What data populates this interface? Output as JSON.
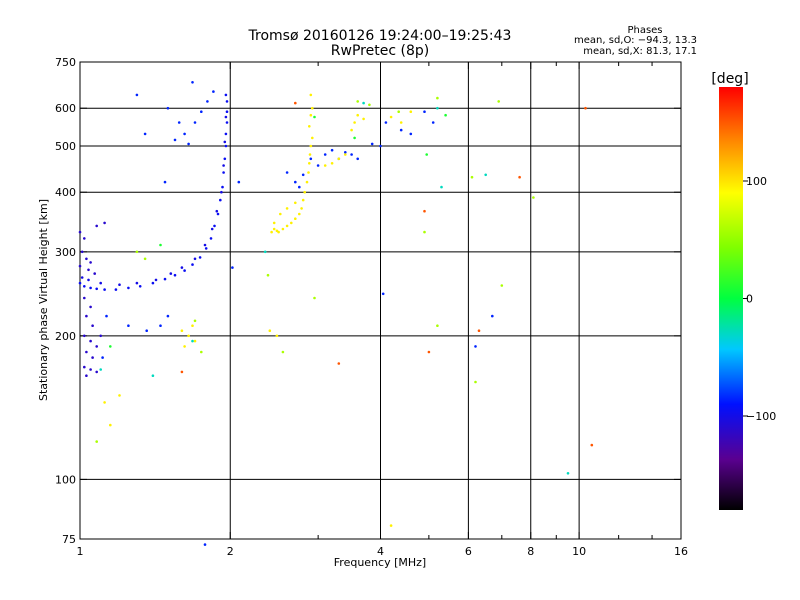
{
  "chart_data": {
    "type": "scatter",
    "title_line1": "Tromsø 20160126 19:24:00–19:25:43",
    "title_line2": "RwPretec (8p)",
    "annotation": {
      "heading": "Phases",
      "line1": "mean, sd,O: −94.3, 13.3",
      "line2": "mean, sd,X:  81.3, 17.1"
    },
    "xlabel": "Frequency [MHz]",
    "ylabel": "Stationary phase Virtual Height [km]",
    "x_scale": "log",
    "y_scale": "log",
    "xlim": [
      1,
      16
    ],
    "ylim": [
      75,
      750
    ],
    "x_ticks": [
      {
        "v": 1,
        "label": "1"
      },
      {
        "v": 2,
        "label": "2"
      },
      {
        "v": 4,
        "label": "4"
      },
      {
        "v": 6,
        "label": "6"
      },
      {
        "v": 8,
        "label": "8"
      },
      {
        "v": 10,
        "label": "10"
      },
      {
        "v": 16,
        "label": "16"
      }
    ],
    "x_minor": [
      3,
      5,
      7,
      9,
      12,
      14
    ],
    "y_ticks": [
      {
        "v": 75,
        "label": "75"
      },
      {
        "v": 100,
        "label": "100"
      },
      {
        "v": 200,
        "label": "200"
      },
      {
        "v": 300,
        "label": "300"
      },
      {
        "v": 400,
        "label": "400"
      },
      {
        "v": 500,
        "label": "500"
      },
      {
        "v": 600,
        "label": "600"
      },
      {
        "v": 750,
        "label": "750"
      }
    ],
    "grid": true,
    "colorbar": {
      "label": "[deg]",
      "min": -180,
      "max": 180,
      "ticks": [
        {
          "v": 100,
          "label": "100"
        },
        {
          "v": 0,
          "label": "0"
        },
        {
          "v": -100,
          "label": "−100"
        }
      ]
    },
    "series": [
      {
        "phase": -95,
        "points": [
          [
            1.0,
            258
          ],
          [
            1.02,
            254
          ],
          [
            1.05,
            252
          ],
          [
            1.08,
            251
          ],
          [
            1.12,
            250
          ],
          [
            1.18,
            250
          ],
          [
            1.25,
            252
          ],
          [
            1.32,
            254
          ],
          [
            1.4,
            258
          ],
          [
            1.48,
            263
          ],
          [
            1.55,
            268
          ],
          [
            1.62,
            274
          ],
          [
            1.68,
            282
          ],
          [
            1.74,
            292
          ],
          [
            1.79,
            305
          ],
          [
            1.83,
            320
          ],
          [
            1.86,
            340
          ],
          [
            1.89,
            360
          ],
          [
            1.91,
            385
          ],
          [
            1.93,
            410
          ],
          [
            1.94,
            440
          ],
          [
            1.95,
            470
          ],
          [
            1.96,
            500
          ],
          [
            1.96,
            530
          ],
          [
            1.97,
            560
          ],
          [
            1.97,
            590
          ],
          [
            1.97,
            620
          ],
          [
            1.96,
            640
          ]
        ]
      },
      {
        "phase": -100,
        "points": [
          [
            1.01,
            265
          ],
          [
            1.04,
            262
          ],
          [
            1.1,
            258
          ],
          [
            1.2,
            256
          ],
          [
            1.3,
            258
          ],
          [
            1.42,
            262
          ],
          [
            1.52,
            270
          ],
          [
            1.6,
            278
          ],
          [
            1.7,
            290
          ],
          [
            1.78,
            310
          ],
          [
            1.84,
            335
          ],
          [
            1.88,
            365
          ],
          [
            1.92,
            400
          ],
          [
            1.94,
            455
          ],
          [
            1.95,
            510
          ],
          [
            1.96,
            575
          ]
        ]
      },
      {
        "phase": -110,
        "points": [
          [
            1.0,
            330
          ],
          [
            1.02,
            320
          ],
          [
            1.01,
            300
          ],
          [
            1.03,
            290
          ],
          [
            1.05,
            285
          ],
          [
            1.0,
            280
          ],
          [
            1.04,
            275
          ],
          [
            1.07,
            270
          ],
          [
            1.02,
            240
          ],
          [
            1.05,
            230
          ],
          [
            1.03,
            220
          ],
          [
            1.06,
            210
          ],
          [
            1.02,
            200
          ],
          [
            1.05,
            195
          ],
          [
            1.08,
            190
          ],
          [
            1.03,
            185
          ],
          [
            1.06,
            180
          ],
          [
            1.02,
            172
          ],
          [
            1.05,
            170
          ],
          [
            1.08,
            168
          ],
          [
            1.03,
            165
          ],
          [
            1.1,
            200
          ],
          [
            1.12,
            345
          ],
          [
            1.08,
            340
          ]
        ]
      },
      {
        "phase": -85,
        "points": [
          [
            1.11,
            180
          ],
          [
            1.13,
            220
          ],
          [
            1.25,
            210
          ],
          [
            1.36,
            205
          ],
          [
            1.45,
            210
          ],
          [
            1.5,
            220
          ],
          [
            1.58,
            560
          ],
          [
            1.62,
            530
          ],
          [
            1.55,
            515
          ],
          [
            1.65,
            505
          ],
          [
            1.7,
            560
          ],
          [
            1.75,
            590
          ],
          [
            1.8,
            620
          ],
          [
            1.85,
            650
          ],
          [
            1.5,
            600
          ],
          [
            1.35,
            530
          ],
          [
            1.48,
            420
          ],
          [
            1.68,
            680
          ],
          [
            1.3,
            640
          ],
          [
            1.78,
            73
          ],
          [
            2.02,
            278
          ],
          [
            2.08,
            420
          ],
          [
            2.9,
            470
          ],
          [
            3.0,
            455
          ],
          [
            3.1,
            480
          ],
          [
            3.2,
            490
          ],
          [
            3.3,
            470
          ],
          [
            3.4,
            485
          ],
          [
            3.5,
            480
          ],
          [
            3.6,
            470
          ],
          [
            3.85,
            505
          ],
          [
            4.0,
            500
          ],
          [
            4.1,
            560
          ],
          [
            4.4,
            540
          ],
          [
            4.6,
            530
          ],
          [
            4.9,
            590
          ],
          [
            5.1,
            560
          ],
          [
            4.05,
            245
          ],
          [
            6.2,
            190
          ],
          [
            6.7,
            220
          ],
          [
            2.6,
            440
          ],
          [
            2.7,
            420
          ],
          [
            2.8,
            435
          ],
          [
            2.75,
            410
          ]
        ]
      },
      {
        "phase": 95,
        "points": [
          [
            2.42,
            330
          ],
          [
            2.45,
            335
          ],
          [
            2.48,
            332
          ],
          [
            2.5,
            330
          ],
          [
            2.55,
            335
          ],
          [
            2.6,
            340
          ],
          [
            2.65,
            345
          ],
          [
            2.7,
            352
          ],
          [
            2.75,
            360
          ],
          [
            2.78,
            370
          ],
          [
            2.8,
            385
          ],
          [
            2.82,
            400
          ],
          [
            2.85,
            420
          ],
          [
            2.87,
            440
          ],
          [
            2.88,
            460
          ],
          [
            2.89,
            480
          ],
          [
            2.9,
            500
          ],
          [
            2.92,
            520
          ],
          [
            2.88,
            550
          ],
          [
            2.9,
            580
          ],
          [
            2.92,
            600
          ],
          [
            2.9,
            640
          ],
          [
            2.7,
            380
          ],
          [
            2.6,
            370
          ],
          [
            2.52,
            360
          ],
          [
            2.45,
            345
          ],
          [
            1.6,
            205
          ],
          [
            1.65,
            200
          ],
          [
            1.7,
            195
          ],
          [
            1.62,
            190
          ],
          [
            1.68,
            210
          ],
          [
            2.4,
            205
          ],
          [
            2.48,
            200
          ],
          [
            3.1,
            455
          ],
          [
            3.2,
            460
          ],
          [
            3.3,
            470
          ],
          [
            3.4,
            480
          ],
          [
            3.5,
            540
          ],
          [
            3.55,
            560
          ],
          [
            3.6,
            580
          ],
          [
            3.7,
            570
          ],
          [
            4.2,
            575
          ],
          [
            4.4,
            560
          ],
          [
            4.6,
            590
          ],
          [
            1.12,
            145
          ],
          [
            1.15,
            130
          ],
          [
            1.2,
            150
          ],
          [
            4.2,
            80
          ]
        ]
      },
      {
        "phase": 60,
        "points": [
          [
            1.3,
            300
          ],
          [
            1.35,
            290
          ],
          [
            1.7,
            215
          ],
          [
            1.75,
            185
          ],
          [
            2.55,
            185
          ],
          [
            2.95,
            240
          ],
          [
            3.6,
            620
          ],
          [
            3.8,
            610
          ],
          [
            4.35,
            590
          ],
          [
            4.9,
            330
          ],
          [
            5.2,
            630
          ],
          [
            6.1,
            430
          ],
          [
            6.2,
            160
          ],
          [
            6.9,
            620
          ],
          [
            8.1,
            390
          ],
          [
            5.2,
            210
          ],
          [
            2.38,
            268
          ],
          [
            1.08,
            120
          ],
          [
            7.0,
            255
          ]
        ]
      },
      {
        "phase": 150,
        "points": [
          [
            1.6,
            168
          ],
          [
            2.7,
            615
          ],
          [
            4.9,
            365
          ],
          [
            5.0,
            185
          ],
          [
            6.3,
            205
          ],
          [
            7.6,
            430
          ],
          [
            10.3,
            600
          ],
          [
            10.6,
            118
          ],
          [
            3.3,
            175
          ]
        ]
      },
      {
        "phase": -30,
        "points": [
          [
            1.1,
            170
          ],
          [
            1.4,
            165
          ],
          [
            1.68,
            195
          ],
          [
            2.35,
            300
          ],
          [
            3.7,
            615
          ],
          [
            5.3,
            410
          ],
          [
            6.5,
            435
          ],
          [
            9.5,
            103
          ],
          [
            5.2,
            600
          ]
        ]
      },
      {
        "phase": 10,
        "points": [
          [
            1.15,
            190
          ],
          [
            1.45,
            310
          ],
          [
            2.95,
            575
          ],
          [
            3.55,
            520
          ],
          [
            4.95,
            480
          ],
          [
            5.4,
            580
          ]
        ]
      }
    ]
  }
}
